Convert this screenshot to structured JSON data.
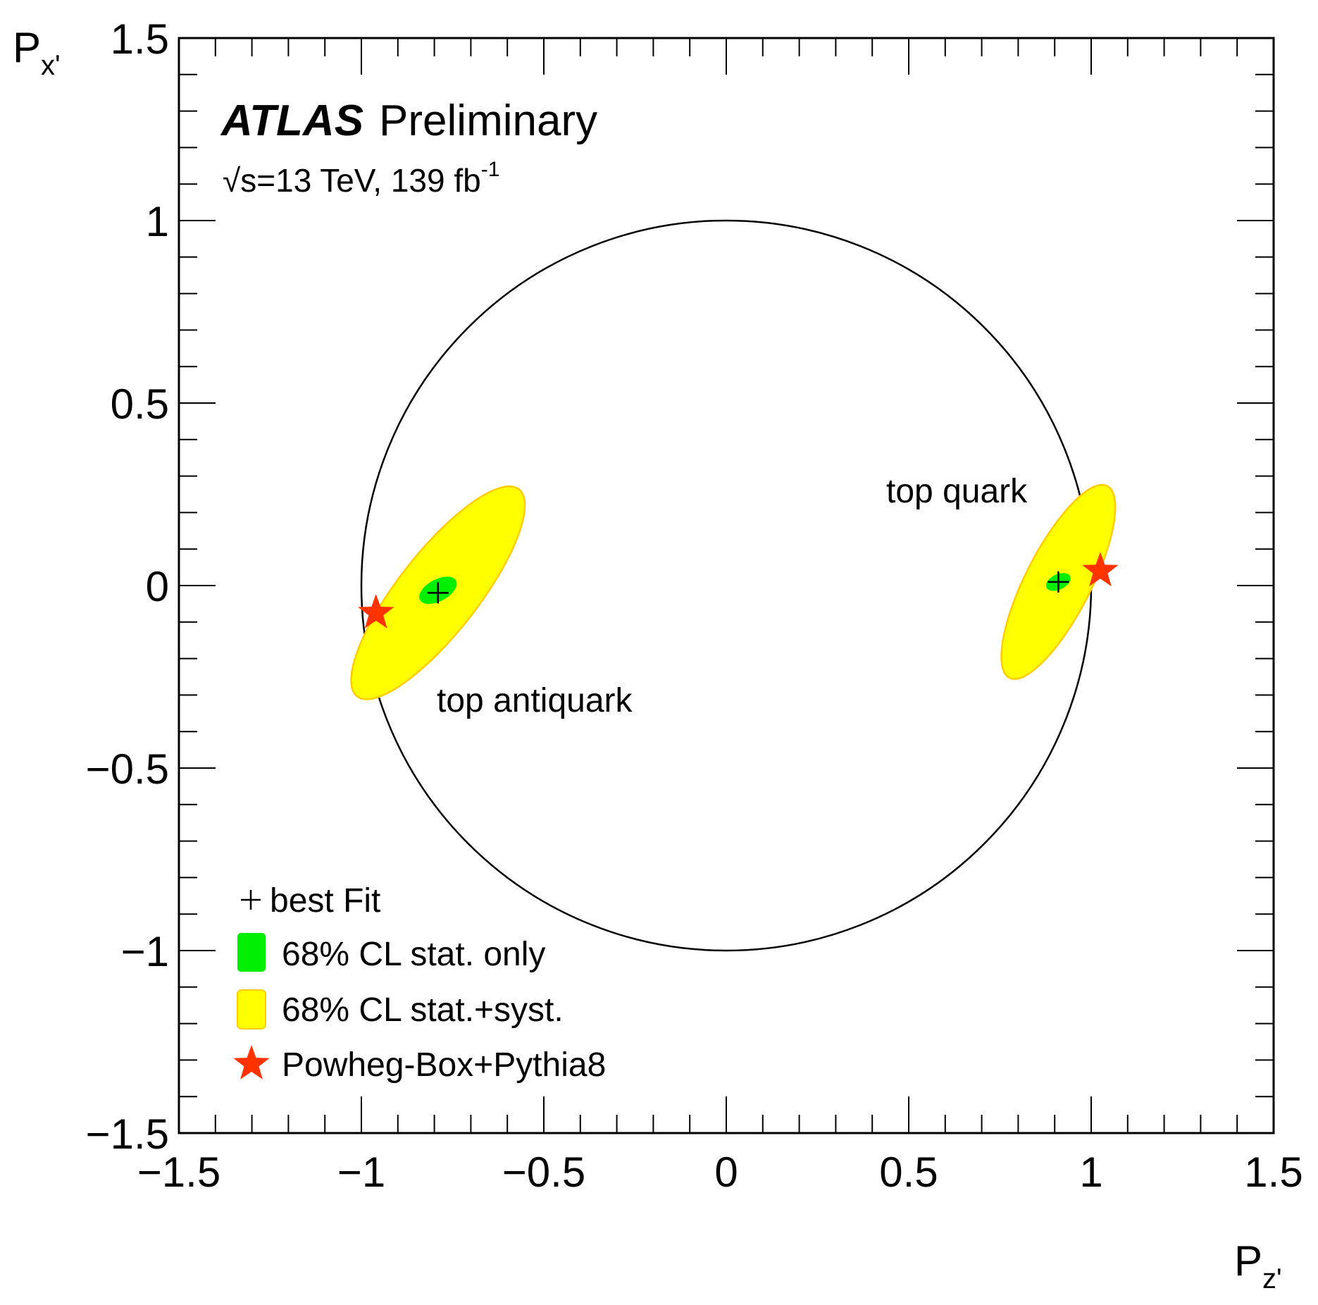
{
  "chart_data": {
    "type": "scatter",
    "title": "",
    "xlabel": {
      "main": "P",
      "sub": "z'"
    },
    "ylabel": {
      "main": "P",
      "sub": "x'"
    },
    "xlim": [
      -1.5,
      1.5
    ],
    "ylim": [
      -1.5,
      1.5
    ],
    "xticks": [
      -1.5,
      -1,
      -0.5,
      0,
      0.5,
      1,
      1.5
    ],
    "yticks": [
      -1.5,
      -1,
      -0.5,
      0,
      0.5,
      1,
      1.5
    ],
    "xtick_labels": [
      "−1.5",
      "−1",
      "−0.5",
      "0",
      "0.5",
      "1",
      "1.5"
    ],
    "ytick_labels": [
      "−1.5",
      "−1",
      "−0.5",
      "0",
      "0.5",
      "1",
      "1.5"
    ],
    "grid": false,
    "unit_circle_radius": 1,
    "experiment": {
      "name": "ATLAS",
      "status": "Preliminary",
      "energy_label": "√s=13 TeV, 139 fb",
      "lumi_exponent": "-1"
    },
    "legend": {
      "placement": "bottom-left",
      "entries": [
        {
          "label": "best Fit",
          "symbol": "cross"
        },
        {
          "label": "68% CL stat. only",
          "symbol": "box",
          "color": "#00ee00"
        },
        {
          "label": "68% CL stat.+syst.",
          "symbol": "box",
          "color": "#ffff00"
        },
        {
          "label": "Powheg-Box+Pythia8",
          "symbol": "star",
          "color": "#ff3300"
        }
      ]
    },
    "series": [
      {
        "annotation": "top antiquark",
        "best_fit": {
          "x": -0.79,
          "y": -0.02
        },
        "stat_syst_ellipse": {
          "cx": -0.79,
          "cy": -0.02,
          "a": 0.36,
          "b": 0.11,
          "angle_deg": 52
        },
        "stat_only_ellipse": {
          "cx": -0.79,
          "cy": -0.013,
          "a": 0.056,
          "b": 0.03,
          "angle_deg": 28
        },
        "prediction": {
          "x": -0.96,
          "y": -0.075
        }
      },
      {
        "annotation": "top quark",
        "best_fit": {
          "x": 0.91,
          "y": 0.01
        },
        "stat_syst_ellipse": {
          "cx": 0.91,
          "cy": 0.01,
          "a": 0.295,
          "b": 0.09,
          "angle_deg": 63
        },
        "stat_only_ellipse": {
          "cx": 0.91,
          "cy": 0.01,
          "a": 0.036,
          "b": 0.021,
          "angle_deg": 25
        },
        "prediction": {
          "x": 1.025,
          "y": 0.04
        }
      }
    ],
    "colors": {
      "stat_syst_fill": "#ffff00",
      "stat_syst_edge": "#ffcc00",
      "stat_only_fill": "#00ee00",
      "prediction": "#ff3300",
      "circle": "#000000"
    }
  }
}
